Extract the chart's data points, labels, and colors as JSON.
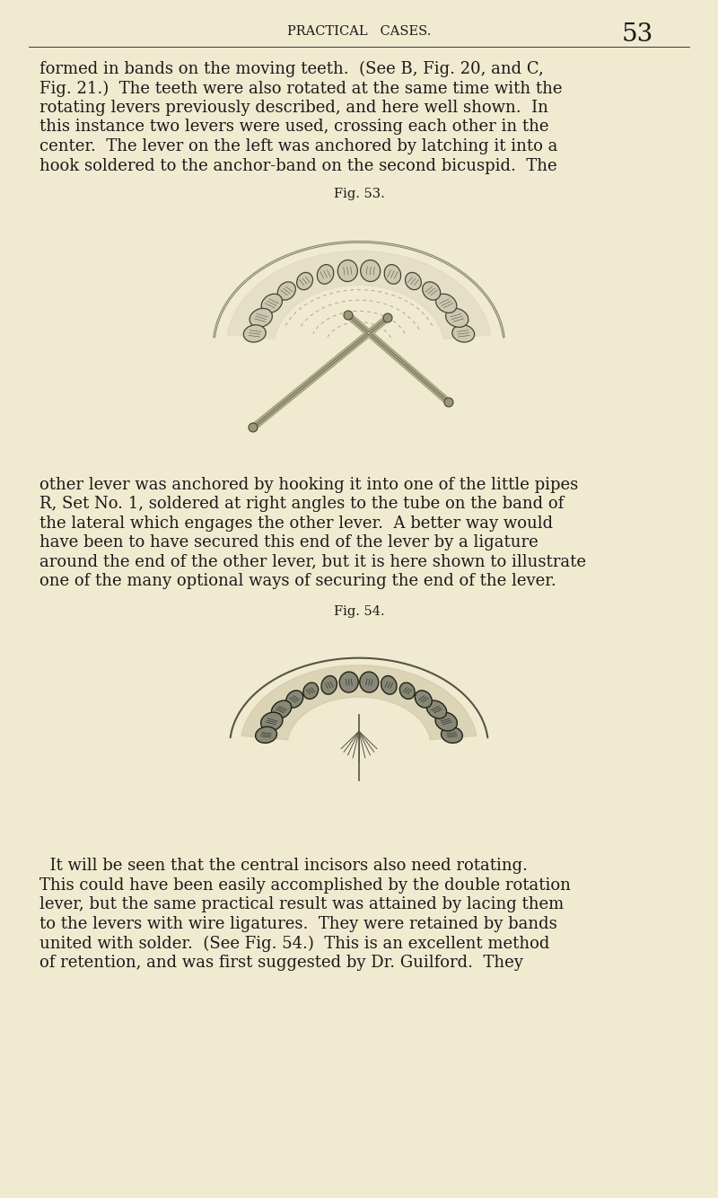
{
  "background_color": "#f0ead0",
  "page_header": "PRACTICAL   CASES.",
  "page_number": "53",
  "header_fontsize": 10.5,
  "page_number_fontsize": 20,
  "body_fontsize": 13.0,
  "fig_label_fontsize": 10.5,
  "text_color": "#1a1a1a",
  "fig53_label": "Fig. 53.",
  "fig54_label": "Fig. 54.",
  "para1_lines": [
    "formed in bands on the moving teeth.  (See B, Fig. 20, and C,",
    "Fig. 21.)  The teeth were also rotated at the same time with the",
    "rotating levers previously described, and here well shown.  In",
    "this instance two levers were used, crossing each other in the",
    "center.  The lever on the left was anchored by latching it into a",
    "hook soldered to the anchor-band on the second bicuspid.  The"
  ],
  "para2_lines": [
    "other lever was anchored by hooking it into one of the little pipes",
    "R, Set No. 1, soldered at right angles to the tube on the band of",
    "the lateral which engages the other lever.  A better way would",
    "have been to have secured this end of the lever by a ligature",
    "around the end of the other lever, but it is here shown to illustrate",
    "one of the many optional ways of securing the end of the lever."
  ],
  "para3_lines": [
    "  It will be seen that the central incisors also need rotating.",
    "This could have been easily accomplished by the double rotation",
    "lever, but the same practical result was attained by lacing them",
    "to the levers with wire ligatures.  They were retained by bands",
    "united with solder.  (See Fig. 54.)  This is an excellent method",
    "of retention, and was first suggested by Dr. Guilford.  They"
  ]
}
